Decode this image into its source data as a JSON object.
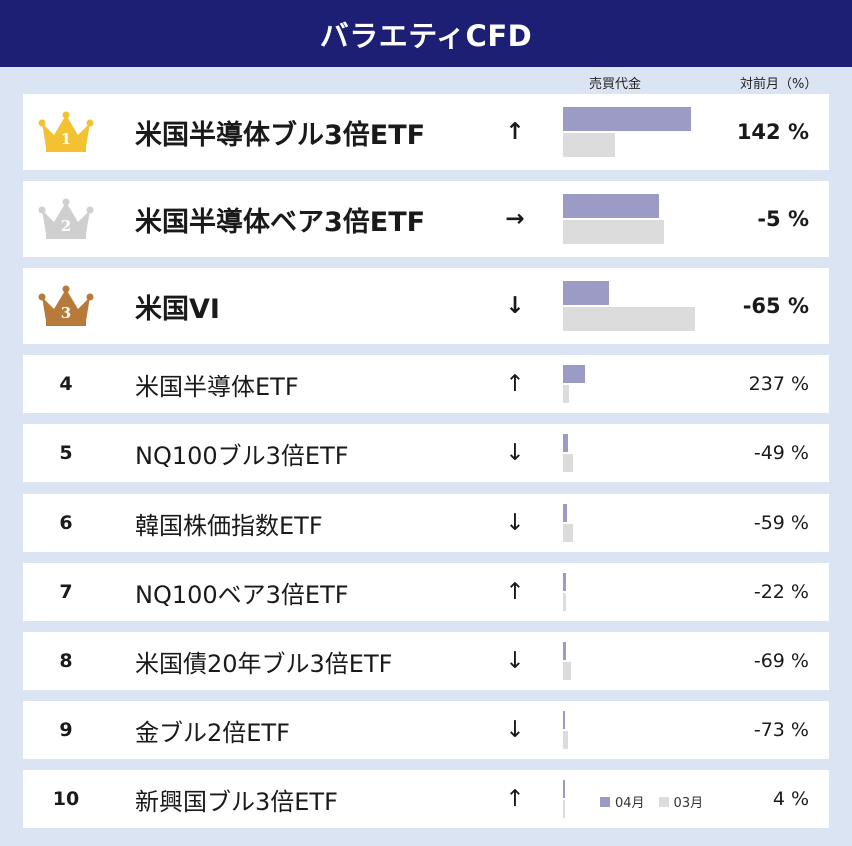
{
  "title": "バラエティCFD",
  "columns": {
    "trade_value": "売買代金",
    "month_over_month": "対前月（%）"
  },
  "legend": {
    "current": "04月",
    "previous": "03月"
  },
  "colors": {
    "header": "#1c1f73",
    "current_bar": "#9b9bc6",
    "previous_bar": "#dcdcdc",
    "gold": "#f2c232",
    "silver": "#cfcfcf",
    "bronze": "#b87a3a"
  },
  "icons": {
    "arrow_up": "↑",
    "arrow_right": "→",
    "arrow_down": "↓"
  },
  "chart_data": {
    "type": "bar",
    "series": [
      {
        "name": "04月",
        "values": [
          100,
          75,
          36,
          17,
          4,
          3,
          2,
          2,
          1,
          1
        ]
      },
      {
        "name": "03月",
        "values": [
          41,
          79,
          103,
          5,
          8,
          8,
          2,
          6,
          4,
          1
        ]
      }
    ],
    "categories": [
      "米国半導体ブル3倍ETF",
      "米国半導体ベア3倍ETF",
      "米国VI",
      "米国半導体ETF",
      "NQ100ブル3倍ETF",
      "韓国株価指数ETF",
      "NQ100ベア3倍ETF",
      "米国債20年ブル3倍ETF",
      "金ブル2倍ETF",
      "新興国ブル3倍ETF"
    ]
  },
  "rows": [
    {
      "rank": "1",
      "crown": "gold",
      "crown_num": "1",
      "name": "米国半導体ブル3倍ETF",
      "arrow": "↑",
      "arrow_icon": "arrow-up-icon",
      "pct": "142 %",
      "cur": 100,
      "prev": 41
    },
    {
      "rank": "2",
      "crown": "silver",
      "crown_num": "2",
      "name": "米国半導体ベア3倍ETF",
      "arrow": "→",
      "arrow_icon": "arrow-right-icon",
      "pct": "-5 %",
      "cur": 75,
      "prev": 79
    },
    {
      "rank": "3",
      "crown": "bronze",
      "crown_num": "3",
      "name": "米国VI",
      "arrow": "↓",
      "arrow_icon": "arrow-down-icon",
      "pct": "-65 %",
      "cur": 36,
      "prev": 103
    },
    {
      "rank": "4",
      "name": "米国半導体ETF",
      "arrow": "↑",
      "arrow_icon": "arrow-up-icon",
      "pct": "237 %",
      "cur": 17,
      "prev": 5
    },
    {
      "rank": "5",
      "name": "NQ100ブル3倍ETF",
      "arrow": "↓",
      "arrow_icon": "arrow-down-icon",
      "pct": "-49 %",
      "cur": 4,
      "prev": 8
    },
    {
      "rank": "6",
      "name": "韓国株価指数ETF",
      "arrow": "↓",
      "arrow_icon": "arrow-down-icon",
      "pct": "-59 %",
      "cur": 3,
      "prev": 8
    },
    {
      "rank": "7",
      "name": "NQ100ベア3倍ETF",
      "arrow": "↑",
      "arrow_icon": "arrow-up-icon",
      "pct": "-22 %",
      "cur": 2,
      "prev": 2
    },
    {
      "rank": "8",
      "name": "米国債20年ブル3倍ETF",
      "arrow": "↓",
      "arrow_icon": "arrow-down-icon",
      "pct": "-69 %",
      "cur": 2,
      "prev": 6
    },
    {
      "rank": "9",
      "name": "金ブル2倍ETF",
      "arrow": "↓",
      "arrow_icon": "arrow-down-icon",
      "pct": "-73 %",
      "cur": 1,
      "prev": 4
    },
    {
      "rank": "10",
      "name": "新興国ブル3倍ETF",
      "arrow": "↑",
      "arrow_icon": "arrow-up-icon",
      "pct": "4 %",
      "cur": 1,
      "prev": 1
    }
  ]
}
